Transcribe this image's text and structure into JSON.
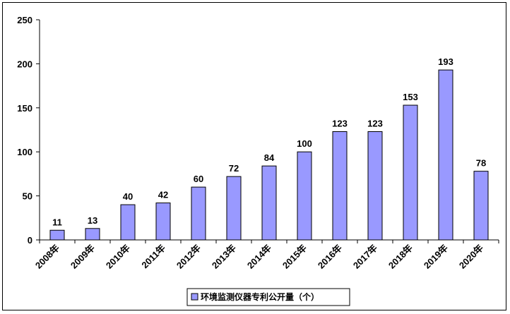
{
  "chart_data": {
    "type": "bar",
    "categories": [
      "2008年",
      "2009年",
      "2010年",
      "2011年",
      "2012年",
      "2013年",
      "2014年",
      "2015年",
      "2016年",
      "2017年",
      "2018年",
      "2019年",
      "2020年"
    ],
    "series": [
      {
        "name": "环境监测仪器专利公开量（个）",
        "values": [
          11,
          13,
          40,
          42,
          60,
          72,
          84,
          100,
          123,
          123,
          153,
          193,
          78
        ]
      }
    ],
    "ylim": [
      0,
      250
    ],
    "yticks": [
      0,
      50,
      100,
      150,
      200,
      250
    ],
    "grid": false,
    "legend": "bottom-center",
    "bar_color": "#9999FF",
    "bar_edge": "#000000"
  }
}
